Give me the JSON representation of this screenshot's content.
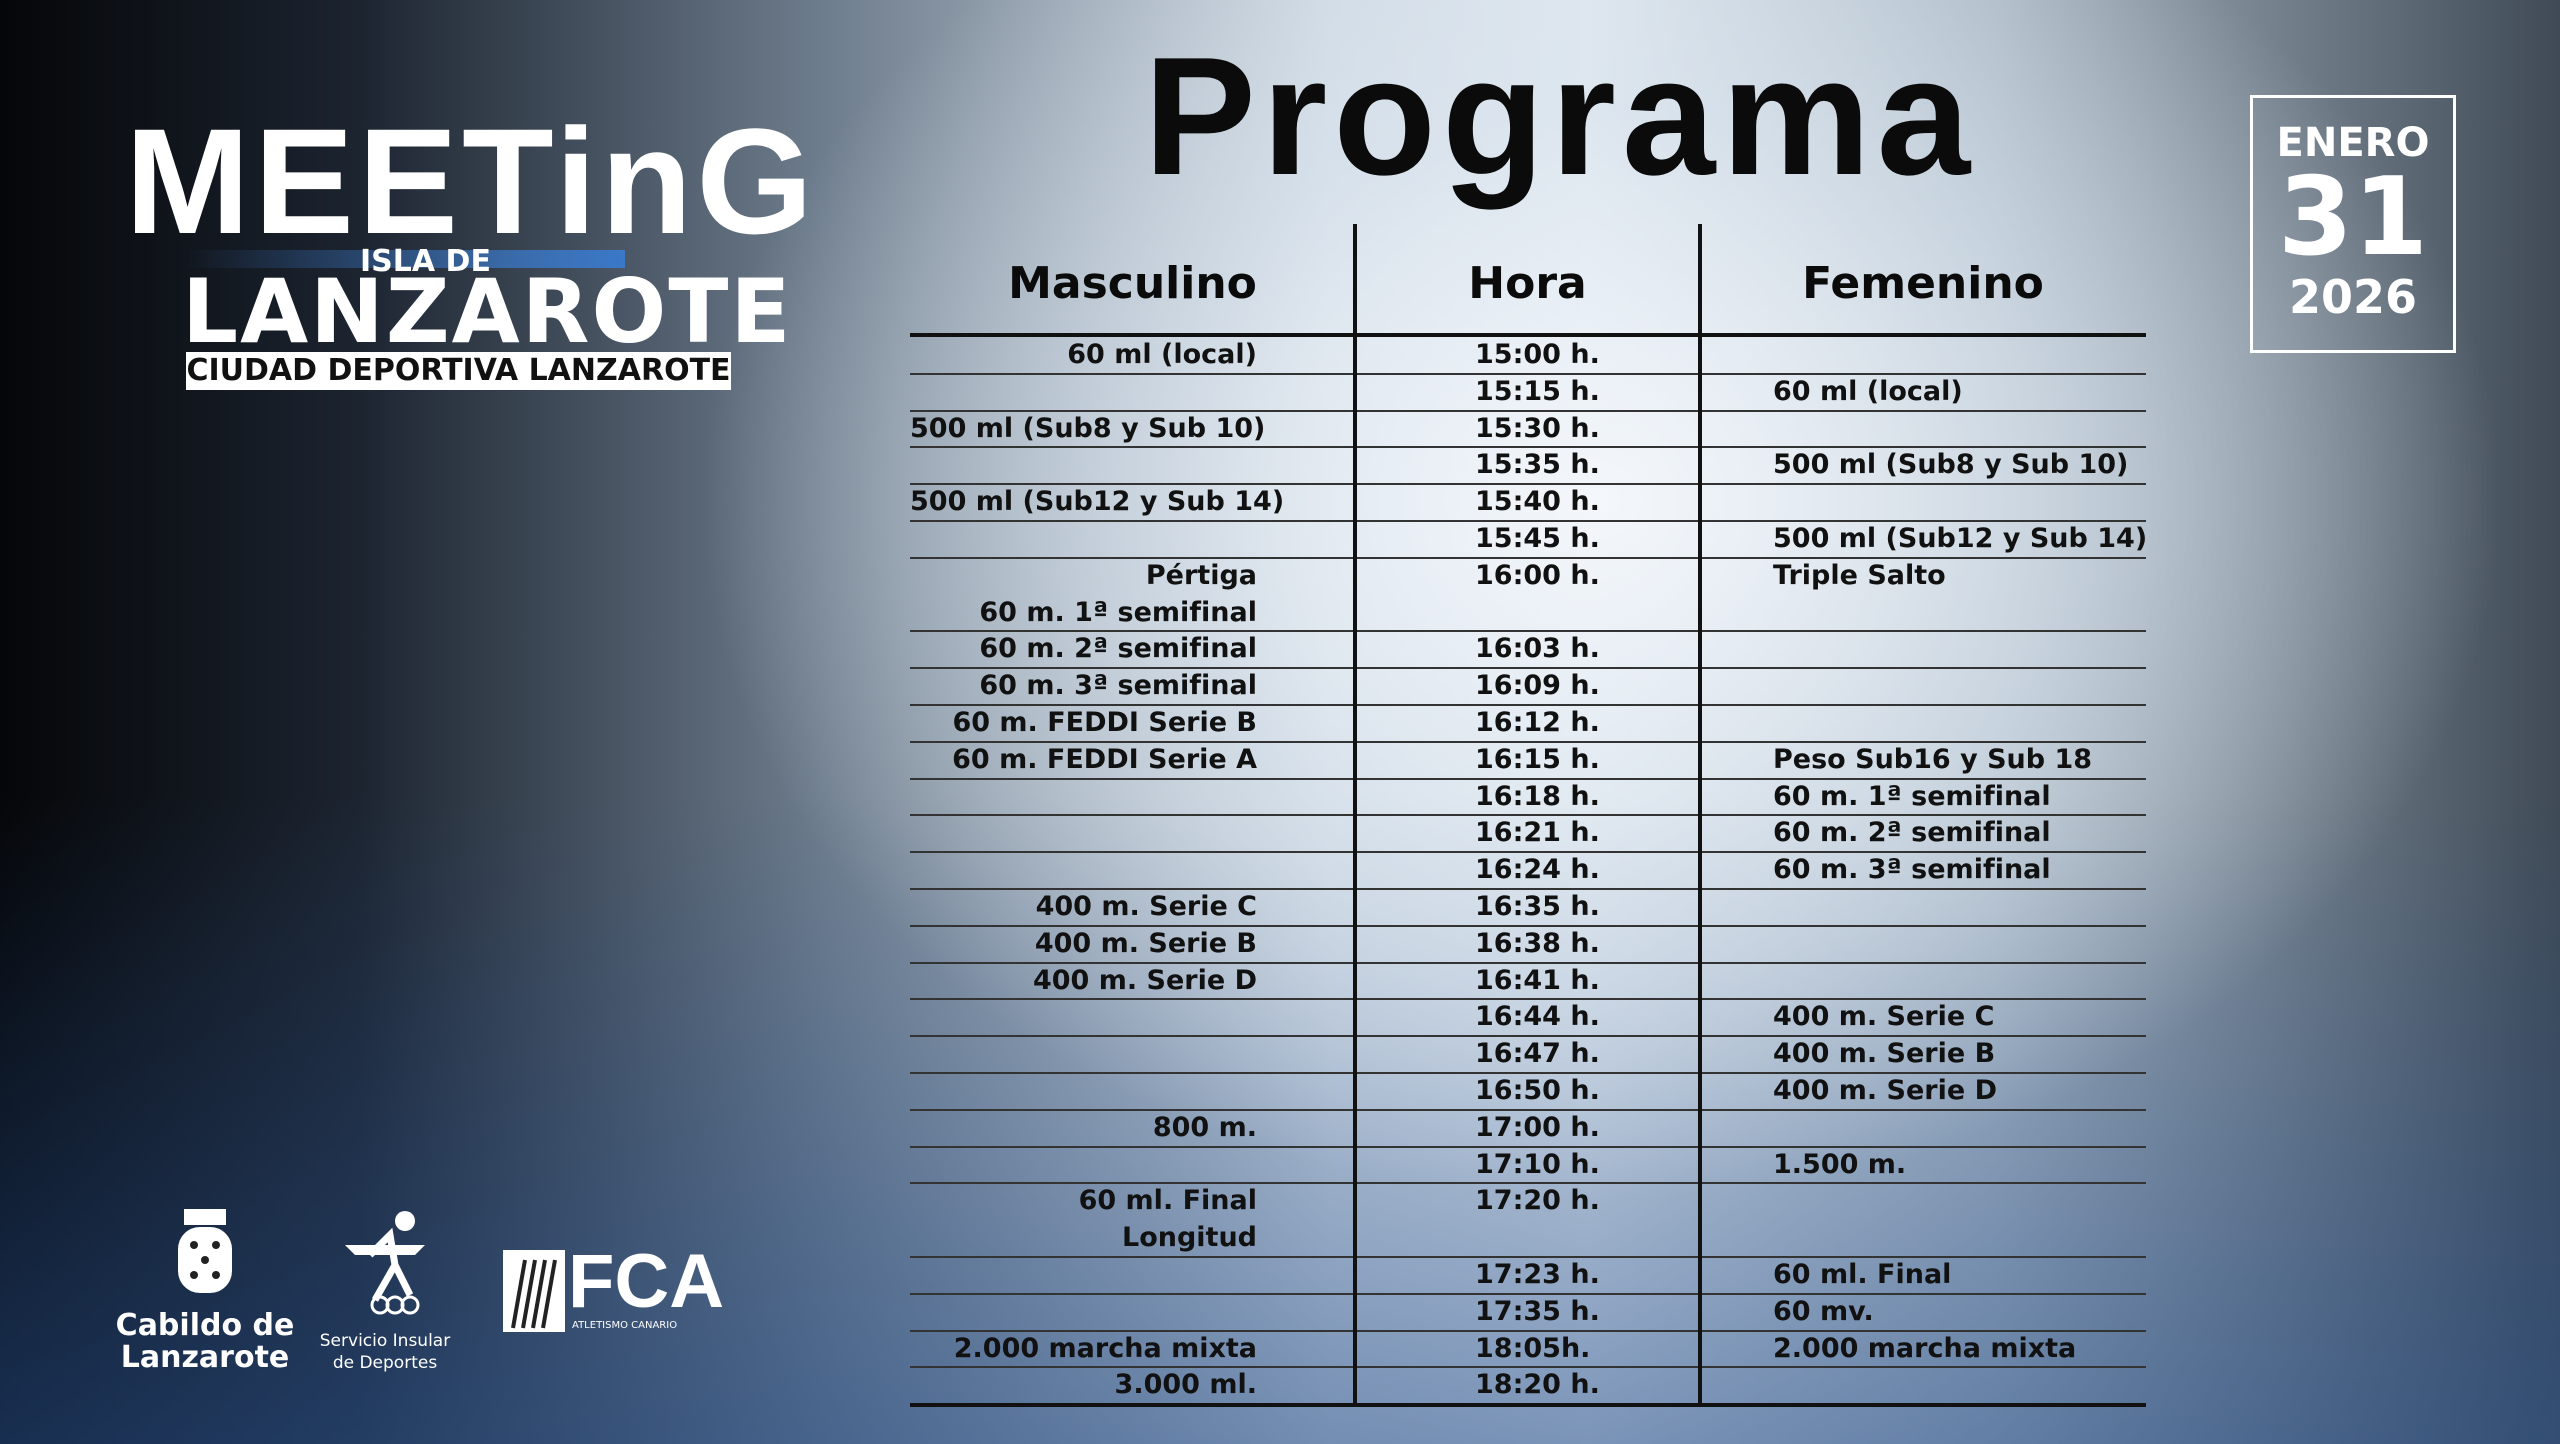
{
  "logo": {
    "name": "MEETinG",
    "subtitle": "ISLA DE",
    "place": "LANZAROTE",
    "venue": "CIUDAD DEPORTIVA LANZAROTE"
  },
  "title": "Programa",
  "date": {
    "month": "ENERO",
    "day": "31",
    "year": "2026"
  },
  "table": {
    "headers": [
      "Masculino",
      "Hora",
      "Femenino"
    ],
    "rows": [
      {
        "masculino": [
          "60 ml (local)"
        ],
        "hora": "15:00 h."
      },
      {
        "hora": "15:15 h.",
        "femenino": "60 ml (local)"
      },
      {
        "masculino": [
          "500 ml (Sub8 y Sub 10)"
        ],
        "hora": "15:30 h."
      },
      {
        "hora": "15:35 h.",
        "femenino": "500 ml (Sub8 y Sub 10)"
      },
      {
        "masculino": [
          "500 ml (Sub12 y Sub 14)"
        ],
        "hora": "15:40 h."
      },
      {
        "hora": "15:45 h.",
        "femenino": "500 ml (Sub12 y Sub 14)"
      },
      {
        "masculino": [
          "Pértiga",
          "60 m. 1ª semifinal"
        ],
        "hora": "16:00 h.",
        "femenino": "Triple Salto"
      },
      {
        "masculino": [
          "60 m. 2ª semifinal"
        ],
        "hora": "16:03 h."
      },
      {
        "masculino": [
          "60 m. 3ª semifinal"
        ],
        "hora": "16:09 h."
      },
      {
        "masculino": [
          "60 m. FEDDI Serie B"
        ],
        "hora": "16:12 h."
      },
      {
        "masculino": [
          "60 m. FEDDI Serie A"
        ],
        "hora": "16:15 h.",
        "femenino": "Peso Sub16 y Sub 18"
      },
      {
        "hora": "16:18 h.",
        "femenino": "60 m. 1ª semifinal"
      },
      {
        "hora": "16:21 h.",
        "femenino": "60 m. 2ª semifinal"
      },
      {
        "hora": "16:24 h.",
        "femenino": "60 m. 3ª semifinal"
      },
      {
        "masculino": [
          "400 m. Serie C"
        ],
        "hora": "16:35 h."
      },
      {
        "masculino": [
          "400 m. Serie B"
        ],
        "hora": "16:38 h."
      },
      {
        "masculino": [
          "400 m. Serie D"
        ],
        "hora": "16:41 h."
      },
      {
        "hora": "16:44 h.",
        "femenino": "400 m. Serie C"
      },
      {
        "hora": "16:47 h.",
        "femenino": "400 m. Serie B"
      },
      {
        "hora": "16:50 h.",
        "femenino": "400 m. Serie D"
      },
      {
        "masculino": [
          "800 m."
        ],
        "hora": "17:00 h."
      },
      {
        "hora": "17:10 h.",
        "femenino": "1.500 m."
      },
      {
        "masculino": [
          "60 ml. Final",
          "Longitud"
        ],
        "hora": "17:20 h."
      },
      {
        "hora": "17:23 h.",
        "femenino": "60 ml. Final"
      },
      {
        "hora": "17:35 h.",
        "femenino": "60 mv."
      },
      {
        "masculino": [
          "2.000 marcha mixta"
        ],
        "hora": "18:05h.",
        "femenino": "2.000 marcha mixta"
      },
      {
        "masculino": [
          "3.000 ml."
        ],
        "hora": "18:20 h."
      }
    ]
  },
  "footer": {
    "cabildo": [
      "Cabildo de",
      "Lanzarote"
    ],
    "servicio": [
      "Servicio Insular",
      "de Deportes"
    ],
    "fca": "FCA",
    "fca_sub": "ATLETISMO CANARIO"
  }
}
